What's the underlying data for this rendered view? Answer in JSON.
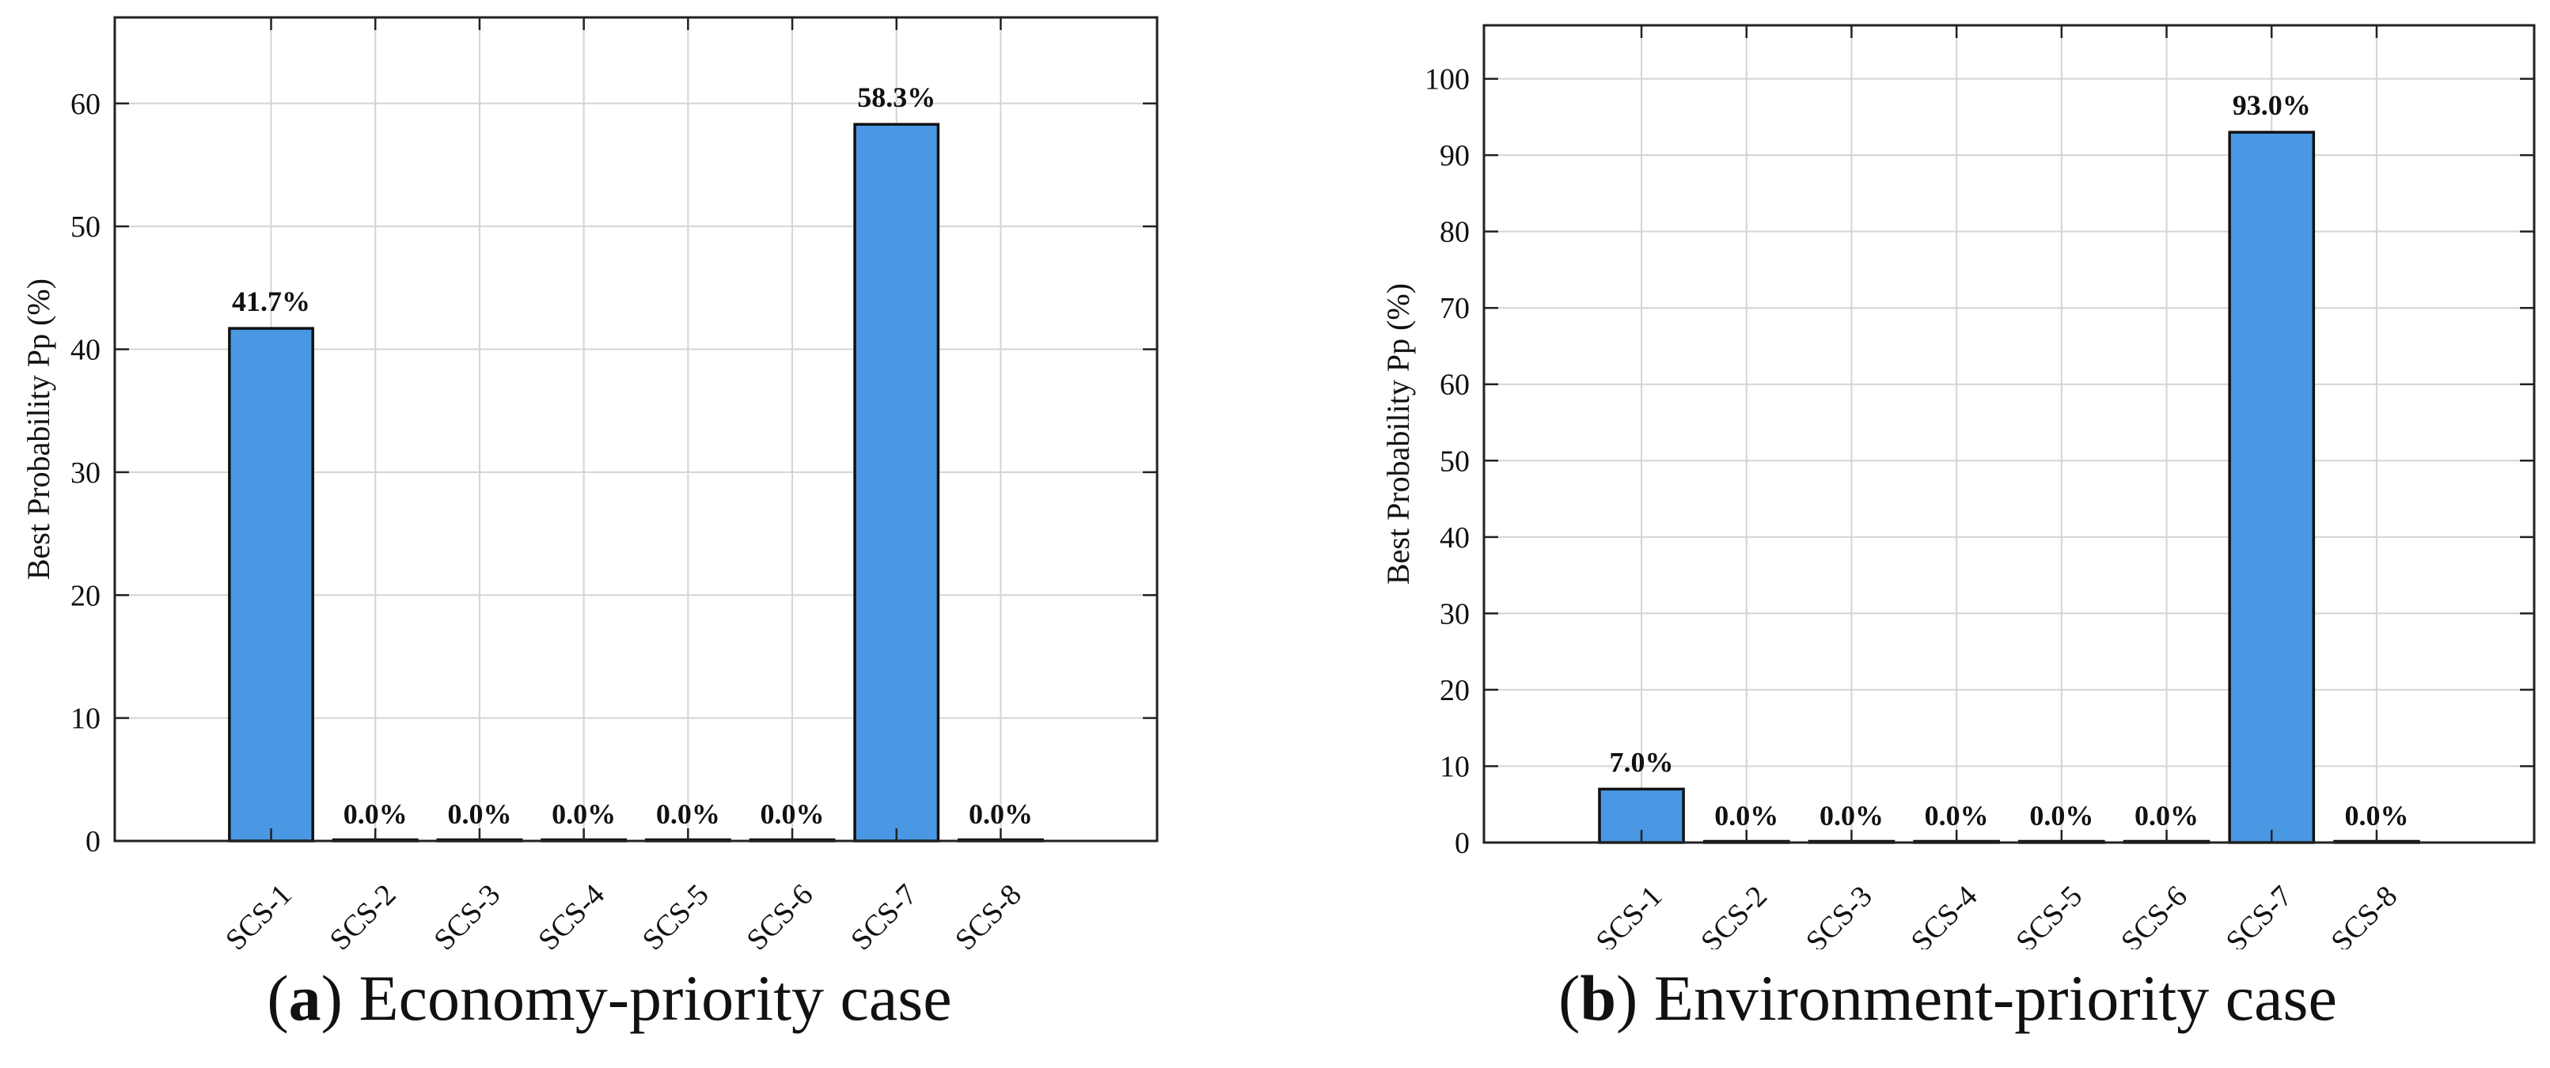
{
  "chart_data": [
    {
      "type": "bar",
      "panel_letter": "a",
      "caption": "Economy-priority case",
      "categories": [
        "SCS-1",
        "SCS-2",
        "SCS-3",
        "SCS-4",
        "SCS-5",
        "SCS-6",
        "SCS-7",
        "SCS-8"
      ],
      "values": [
        41.7,
        0.0,
        0.0,
        0.0,
        0.0,
        0.0,
        58.3,
        0.0
      ],
      "data_labels": [
        "41.7%",
        "0.0%",
        "0.0%",
        "0.0%",
        "0.0%",
        "0.0%",
        "58.3%",
        "0.0%"
      ],
      "ylabel": "Best Probability Pp (%)",
      "xlabel": "",
      "ylim": [
        0,
        67
      ],
      "yticks": [
        0,
        10,
        20,
        30,
        40,
        50,
        60
      ],
      "grid": true,
      "bar_color": "#4a98e4"
    },
    {
      "type": "bar",
      "panel_letter": "b",
      "caption": "Environment-priority case",
      "categories": [
        "SCS-1",
        "SCS-2",
        "SCS-3",
        "SCS-4",
        "SCS-5",
        "SCS-6",
        "SCS-7",
        "SCS-8"
      ],
      "values": [
        7.0,
        0.0,
        0.0,
        0.0,
        0.0,
        0.0,
        93.0,
        0.0
      ],
      "data_labels": [
        "7.0%",
        "0.0%",
        "0.0%",
        "0.0%",
        "0.0%",
        "0.0%",
        "93.0%",
        "0.0%"
      ],
      "ylabel": "Best Probability Pp (%)",
      "xlabel": "",
      "ylim": [
        0,
        107
      ],
      "yticks": [
        0,
        10,
        20,
        30,
        40,
        50,
        60,
        70,
        80,
        90,
        100
      ],
      "grid": true,
      "bar_color": "#4a98e4"
    }
  ]
}
